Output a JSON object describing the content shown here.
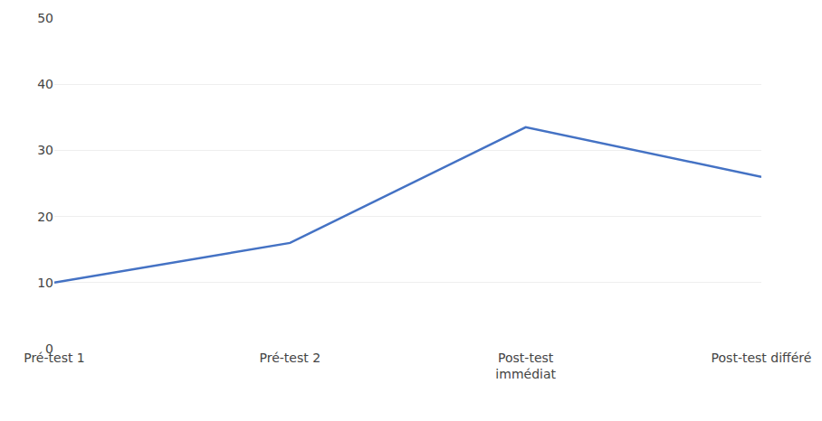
{
  "chart_data": {
    "type": "line",
    "categories": [
      "Pré-test 1",
      "Pré-test 2",
      "Post-test\nimmédiat",
      "Post-test différé"
    ],
    "values": [
      10,
      16,
      33.5,
      26
    ],
    "color": "#4472C4",
    "ylim": [
      0,
      50
    ],
    "yticks": [
      0,
      10,
      20,
      30,
      40,
      50
    ],
    "grid": true
  }
}
